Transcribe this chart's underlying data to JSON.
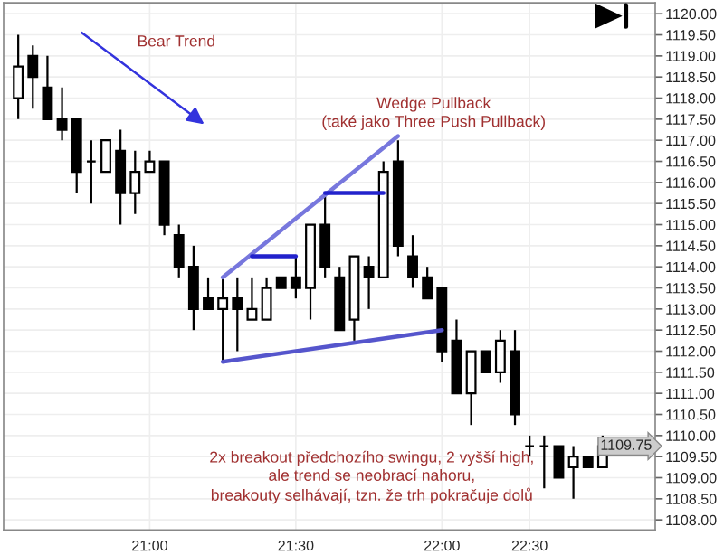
{
  "chart_data": {
    "type": "candlestick",
    "categories": [
      null,
      null,
      null,
      null,
      null,
      null,
      null,
      null,
      null,
      "21:00",
      null,
      null,
      null,
      null,
      null,
      null,
      null,
      null,
      null,
      "21:30",
      null,
      null,
      null,
      null,
      null,
      null,
      null,
      null,
      null,
      "22:00",
      null,
      null,
      null,
      null,
      null,
      "22:30",
      null,
      null,
      null,
      null,
      null
    ],
    "ohlc": [
      [
        1118.0,
        1119.5,
        1117.5,
        1118.75
      ],
      [
        1119.0,
        1119.25,
        1117.75,
        1118.5
      ],
      [
        1118.25,
        1119.0,
        1117.5,
        1117.5
      ],
      [
        1117.5,
        1118.25,
        1117.0,
        1117.25
      ],
      [
        1117.5,
        1117.5,
        1115.75,
        1116.25
      ],
      [
        1116.5,
        1117.0,
        1115.5,
        1116.5
      ],
      [
        1116.25,
        1117.0,
        1116.25,
        1117.0
      ],
      [
        1116.75,
        1117.25,
        1115.0,
        1115.75
      ],
      [
        1115.75,
        1116.75,
        1115.25,
        1116.25
      ],
      [
        1116.25,
        1116.75,
        1116.25,
        1116.5
      ],
      [
        1116.5,
        1116.5,
        1114.75,
        1115.0
      ],
      [
        1114.75,
        1115.0,
        1113.75,
        1114.0
      ],
      [
        1114.0,
        1114.5,
        1112.5,
        1113.0
      ],
      [
        1113.25,
        1113.75,
        1113.0,
        1113.0
      ],
      [
        1113.0,
        1113.75,
        1111.75,
        1113.25
      ],
      [
        1113.25,
        1113.75,
        1112.0,
        1113.0
      ],
      [
        1112.75,
        1113.75,
        1112.75,
        1113.0
      ],
      [
        1112.75,
        1113.75,
        1112.75,
        1113.5
      ],
      [
        1113.75,
        1113.75,
        1113.5,
        1113.5
      ],
      [
        1113.75,
        1114.25,
        1113.25,
        1113.5
      ],
      [
        1113.5,
        1115.0,
        1112.75,
        1115.0
      ],
      [
        1115.0,
        1115.75,
        1113.75,
        1114.0
      ],
      [
        1113.75,
        1114.0,
        1112.5,
        1112.5
      ],
      [
        1112.75,
        1114.25,
        1112.25,
        1114.25
      ],
      [
        1114.0,
        1114.25,
        1113.0,
        1113.75
      ],
      [
        1113.75,
        1116.5,
        1113.75,
        1116.25
      ],
      [
        1116.5,
        1117.0,
        1114.25,
        1114.5
      ],
      [
        1114.25,
        1114.75,
        1113.5,
        1113.75
      ],
      [
        1113.75,
        1114.0,
        1113.25,
        1113.25
      ],
      [
        1113.5,
        1113.5,
        1111.75,
        1112.0
      ],
      [
        1112.25,
        1112.75,
        1111.0,
        1111.0
      ],
      [
        1111.0,
        1112.0,
        1110.25,
        1112.0
      ],
      [
        1112.0,
        1112.0,
        1111.5,
        1111.5
      ],
      [
        1111.5,
        1112.5,
        1111.25,
        1112.25
      ],
      [
        1112.0,
        1112.5,
        1110.25,
        1110.5
      ],
      [
        1109.75,
        1110.0,
        1109.5,
        1109.75
      ],
      [
        1109.75,
        1110.0,
        1108.75,
        1109.75
      ],
      [
        1109.75,
        1109.75,
        1109.0,
        1109.0
      ],
      [
        1109.25,
        1109.75,
        1108.5,
        1109.5
      ],
      [
        1109.5,
        1109.5,
        1109.25,
        1109.25
      ],
      [
        1109.25,
        1110.0,
        1109.25,
        1109.75
      ]
    ],
    "series": [
      {
        "type": "line",
        "color": "#7777dd",
        "values": [
          null,
          null,
          null,
          null,
          null,
          null,
          null,
          null,
          null,
          null,
          null,
          null,
          null,
          null,
          1113.75,
          null,
          null,
          null,
          null,
          null,
          null,
          null,
          null,
          null,
          null,
          null,
          1117.1,
          null,
          null,
          null,
          null,
          null,
          null,
          null,
          null,
          null,
          null,
          null,
          null,
          null,
          null
        ]
      },
      {
        "type": "line",
        "color": "#5555cc",
        "values": [
          null,
          null,
          null,
          null,
          null,
          null,
          null,
          null,
          null,
          null,
          null,
          null,
          null,
          null,
          1111.75,
          null,
          null,
          null,
          null,
          null,
          null,
          null,
          null,
          null,
          null,
          null,
          null,
          null,
          null,
          1112.5,
          null,
          null,
          null,
          null,
          null,
          null,
          null,
          null,
          null,
          null,
          null
        ]
      },
      {
        "type": "line",
        "color": "#2222cc",
        "values": [
          null,
          null,
          null,
          null,
          null,
          null,
          null,
          null,
          null,
          null,
          null,
          null,
          null,
          null,
          null,
          null,
          1114.25,
          null,
          null,
          1114.25,
          null,
          null,
          null,
          null,
          null,
          null,
          null,
          null,
          null,
          null,
          null,
          null,
          null,
          null,
          null,
          null,
          null,
          null,
          null,
          null,
          null
        ]
      },
      {
        "type": "line",
        "color": "#2222cc",
        "values": [
          null,
          null,
          null,
          null,
          null,
          null,
          null,
          null,
          null,
          null,
          null,
          null,
          null,
          null,
          null,
          null,
          null,
          null,
          null,
          null,
          null,
          1115.75,
          null,
          null,
          null,
          1115.75,
          null,
          null,
          null,
          null,
          null,
          null,
          null,
          null,
          null,
          null,
          null,
          null,
          null,
          null,
          null
        ]
      }
    ],
    "ylim": [
      1107.76,
      1120.26
    ],
    "yticks": [
      {
        "value": 1108,
        "label": "1108.00"
      },
      {
        "value": 1108.5,
        "label": "1108.50"
      },
      {
        "value": 1109,
        "label": "1109.00"
      },
      {
        "value": 1109.5,
        "label": "1109.50"
      },
      {
        "value": 1110,
        "label": "1110.00"
      },
      {
        "value": 1110.5,
        "label": "1110.50"
      },
      {
        "value": 1111,
        "label": "1111.00"
      },
      {
        "value": 1111.5,
        "label": "1111.50"
      },
      {
        "value": 1112,
        "label": "1112.00"
      },
      {
        "value": 1112.5,
        "label": "1112.50"
      },
      {
        "value": 1113,
        "label": "1113.00"
      },
      {
        "value": 1113.5,
        "label": "1113.50"
      },
      {
        "value": 1114,
        "label": "1114.00"
      },
      {
        "value": 1114.5,
        "label": "1114.50"
      },
      {
        "value": 1115,
        "label": "1115.00"
      },
      {
        "value": 1115.5,
        "label": "1115.50"
      },
      {
        "value": 1116,
        "label": "1116.00"
      },
      {
        "value": 1116.5,
        "label": "1116.50"
      },
      {
        "value": 1117,
        "label": "1117.00"
      },
      {
        "value": 1117.5,
        "label": "1117.50"
      },
      {
        "value": 1118,
        "label": "1118.00"
      },
      {
        "value": 1118.5,
        "label": "1118.50"
      },
      {
        "value": 1119,
        "label": "1119.00"
      },
      {
        "value": 1119.5,
        "label": "1119.50"
      },
      {
        "value": 1120,
        "label": "1120.00"
      }
    ],
    "grid": true,
    "annotations": [
      "Bear Trend",
      "Wedge Pullback\n(také jako Three Push Pullback)",
      {
        "text": "1109.75",
        "y": 1109.75
      },
      "2x breakout předchozího swingu, 2 vyšší high,\nale trend se neobrací nahoru,\nbreakouty selhávají, tzn. že trh pokračuje dolů"
    ]
  }
}
